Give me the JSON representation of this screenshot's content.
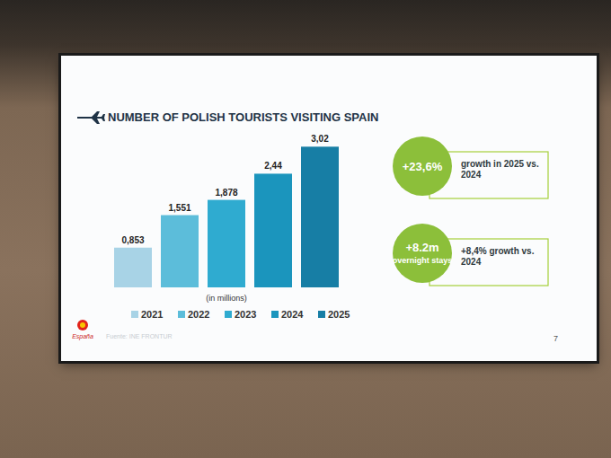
{
  "chart_data": {
    "type": "bar",
    "title": "NUMBER OF POLISH TOURISTS VISITING SPAIN",
    "categories": [
      "2021",
      "2022",
      "2023",
      "2024",
      "2025"
    ],
    "values": [
      0.853,
      1.551,
      1.878,
      2.44,
      3.02
    ],
    "value_labels": [
      "0,853",
      "1,551",
      "1,878",
      "2,44",
      "3,02"
    ],
    "colors": [
      "#a8d3e6",
      "#5cbdda",
      "#2fabd0",
      "#1b95bd",
      "#177ea5"
    ],
    "ylim": [
      0,
      3.2
    ],
    "tick_labels": false,
    "data_labels": true,
    "legend": "bottom",
    "unit_label": "(in millions)",
    "annotations": [
      {
        "badge": "+23,6%",
        "text": "growth in 2025 vs. 2024"
      },
      {
        "badge": "+8.2m",
        "badge_sub": "overnight stays",
        "text": "+8,4% growth vs. 2024"
      }
    ],
    "source": "Fuente: INE FRONTUR",
    "logo": "España",
    "page_number": 7
  }
}
